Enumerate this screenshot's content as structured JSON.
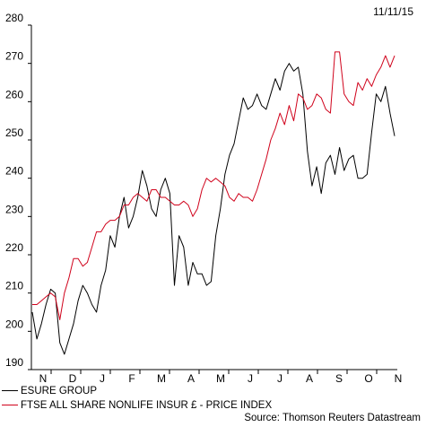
{
  "date_label": "11/11/15",
  "source": "Source: Thomson Reuters Datastream",
  "chart_data": {
    "type": "line",
    "title": "",
    "xlabel": "",
    "ylabel": "",
    "ylim": [
      190,
      280
    ],
    "y_ticks": [
      190,
      200,
      210,
      220,
      230,
      240,
      250,
      260,
      270,
      280
    ],
    "x_ticks": [
      "N",
      "D",
      "J",
      "F",
      "M",
      "A",
      "M",
      "J",
      "J",
      "A",
      "S",
      "O",
      "N"
    ],
    "grid": false,
    "legend_position": "bottom",
    "series": [
      {
        "name": "ESURE GROUP",
        "color": "#000000",
        "values": [
          205,
          198,
          202,
          207,
          211,
          210,
          197,
          194,
          198,
          202,
          208,
          212,
          210,
          207,
          205,
          212,
          216,
          225,
          222,
          230,
          235,
          227,
          230,
          235,
          242,
          238,
          232,
          230,
          237,
          240,
          236,
          212,
          225,
          222,
          212,
          218,
          215,
          215,
          212,
          213,
          225,
          232,
          241,
          246,
          249,
          255,
          261,
          258,
          259,
          262,
          259,
          258,
          262,
          266,
          263,
          268,
          270,
          268,
          269,
          262,
          247,
          238,
          243,
          236,
          244,
          246,
          241,
          248,
          242,
          245,
          246,
          240,
          240,
          241,
          252,
          262,
          260,
          264,
          257,
          251
        ]
      },
      {
        "name": "FTSE ALL SHARE NONLIFE INSUR £ - PRICE INDEX",
        "color": "#d0021b",
        "values": [
          207,
          207,
          208,
          209,
          210,
          209,
          203,
          210,
          214,
          219,
          219,
          217,
          218,
          222,
          226,
          226,
          228,
          229,
          229,
          230,
          233,
          233,
          235,
          236,
          235,
          234,
          237,
          237,
          235,
          235,
          234,
          233,
          233,
          234,
          233,
          230,
          232,
          237,
          240,
          239,
          240,
          239,
          238,
          235,
          234,
          236,
          235,
          235,
          234,
          237,
          241,
          245,
          250,
          253,
          257,
          254,
          259,
          255,
          262,
          261,
          258,
          259,
          262,
          261,
          258,
          257,
          273,
          273,
          262,
          260,
          259,
          265,
          263,
          266,
          264,
          267,
          269,
          272,
          269,
          272
        ]
      }
    ]
  }
}
